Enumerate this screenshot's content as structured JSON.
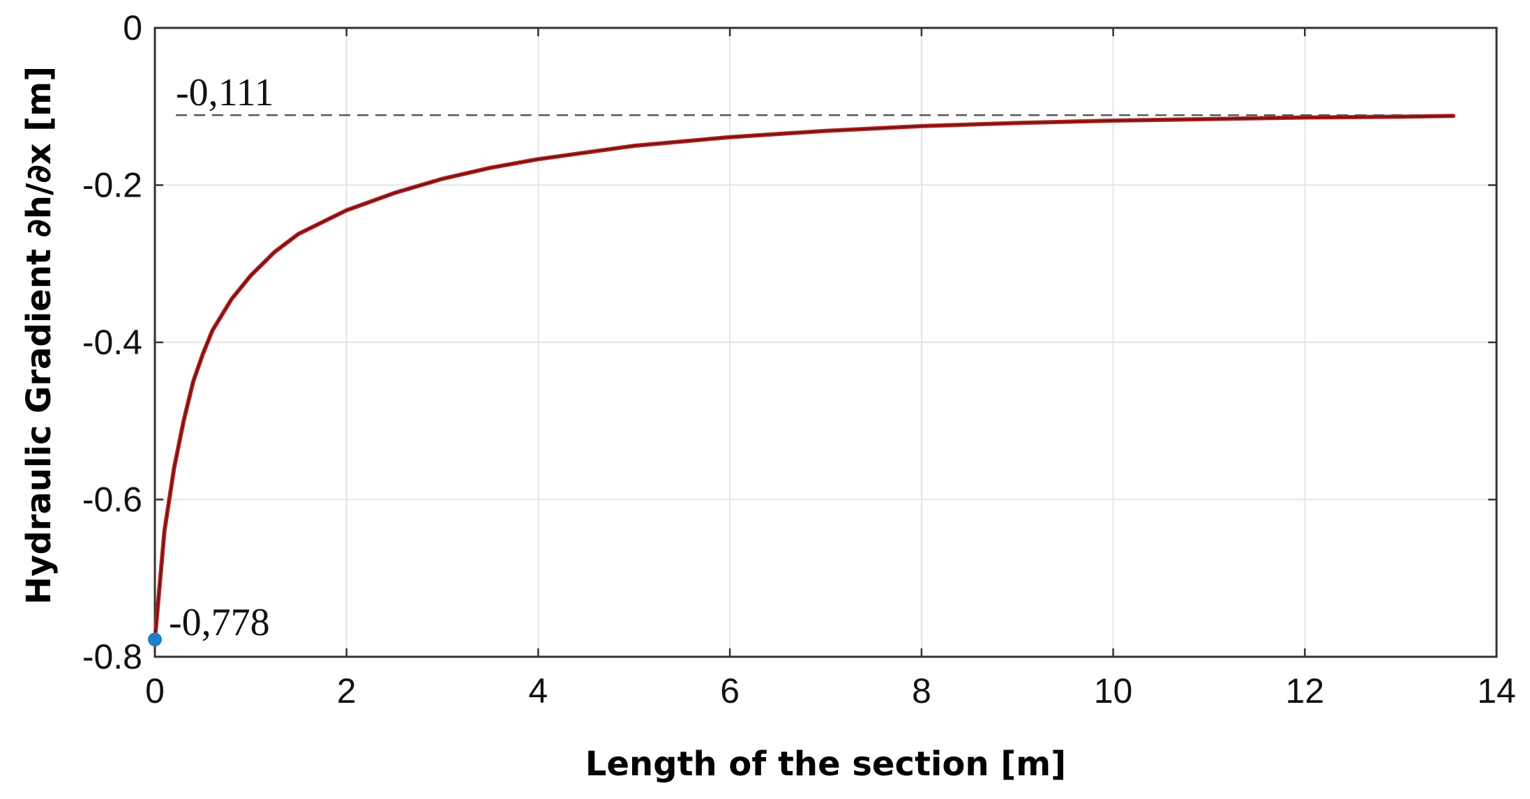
{
  "chart_data": {
    "type": "line",
    "xlabel": "Length of the section [m]",
    "ylabel": "Hydraulic Gradient ∂h/∂x [m]",
    "xlim": [
      0,
      14
    ],
    "ylim": [
      -0.8,
      0
    ],
    "x_ticks": [
      "0",
      "2",
      "4",
      "6",
      "8",
      "10",
      "12",
      "14"
    ],
    "y_ticks": [
      "0",
      "-0.2",
      "-0.4",
      "-0.6",
      "-0.8"
    ],
    "grid": true,
    "series": [
      {
        "color": "#b22222",
        "x": [
          0,
          0.1,
          0.2,
          0.3,
          0.4,
          0.5,
          0.6,
          0.8,
          1.0,
          1.25,
          1.5,
          2.0,
          2.5,
          3.0,
          3.5,
          4.0,
          5.0,
          6.0,
          7.0,
          8.0,
          9.0,
          10.0,
          11.0,
          12.0,
          13.0,
          13.55
        ],
        "y": [
          -0.778,
          -0.64,
          -0.56,
          -0.5,
          -0.45,
          -0.415,
          -0.385,
          -0.345,
          -0.315,
          -0.285,
          -0.262,
          -0.232,
          -0.21,
          -0.192,
          -0.178,
          -0.167,
          -0.15,
          -0.139,
          -0.131,
          -0.125,
          -0.121,
          -0.118,
          -0.116,
          -0.114,
          -0.113,
          -0.112
        ]
      }
    ],
    "reference_line": {
      "y": -0.111,
      "label": "-0,111",
      "style": "dashed",
      "color": "#555555"
    },
    "marked_point": {
      "x": 0,
      "y": -0.778,
      "label": "-0,778",
      "color": "#1f7fc4"
    }
  }
}
